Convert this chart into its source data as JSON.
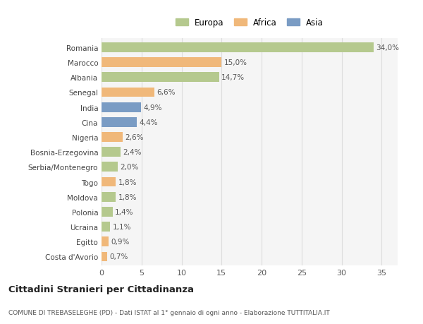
{
  "countries": [
    "Romania",
    "Marocco",
    "Albania",
    "Senegal",
    "India",
    "Cina",
    "Nigeria",
    "Bosnia-Erzegovina",
    "Serbia/Montenegro",
    "Togo",
    "Moldova",
    "Polonia",
    "Ucraina",
    "Egitto",
    "Costa d'Avorio"
  ],
  "values": [
    34.0,
    15.0,
    14.7,
    6.6,
    4.9,
    4.4,
    2.6,
    2.4,
    2.0,
    1.8,
    1.8,
    1.4,
    1.1,
    0.9,
    0.7
  ],
  "labels": [
    "34,0%",
    "15,0%",
    "14,7%",
    "6,6%",
    "4,9%",
    "4,4%",
    "2,6%",
    "2,4%",
    "2,0%",
    "1,8%",
    "1,8%",
    "1,4%",
    "1,1%",
    "0,9%",
    "0,7%"
  ],
  "continents": [
    "Europa",
    "Africa",
    "Europa",
    "Africa",
    "Asia",
    "Asia",
    "Africa",
    "Europa",
    "Europa",
    "Africa",
    "Europa",
    "Europa",
    "Europa",
    "Africa",
    "Africa"
  ],
  "colors": {
    "Europa": "#b5c98e",
    "Africa": "#f0b87a",
    "Asia": "#7a9cc4"
  },
  "legend_labels": [
    "Europa",
    "Africa",
    "Asia"
  ],
  "title": "Cittadini Stranieri per Cittadinanza",
  "subtitle": "COMUNE DI TREBASELEGHE (PD) - Dati ISTAT al 1° gennaio di ogni anno - Elaborazione TUTTITALIA.IT",
  "xlim": [
    0,
    37
  ],
  "xticks": [
    0,
    5,
    10,
    15,
    20,
    25,
    30,
    35
  ],
  "bg_color": "#ffffff",
  "plot_bg_color": "#f5f5f5",
  "grid_color": "#dddddd"
}
